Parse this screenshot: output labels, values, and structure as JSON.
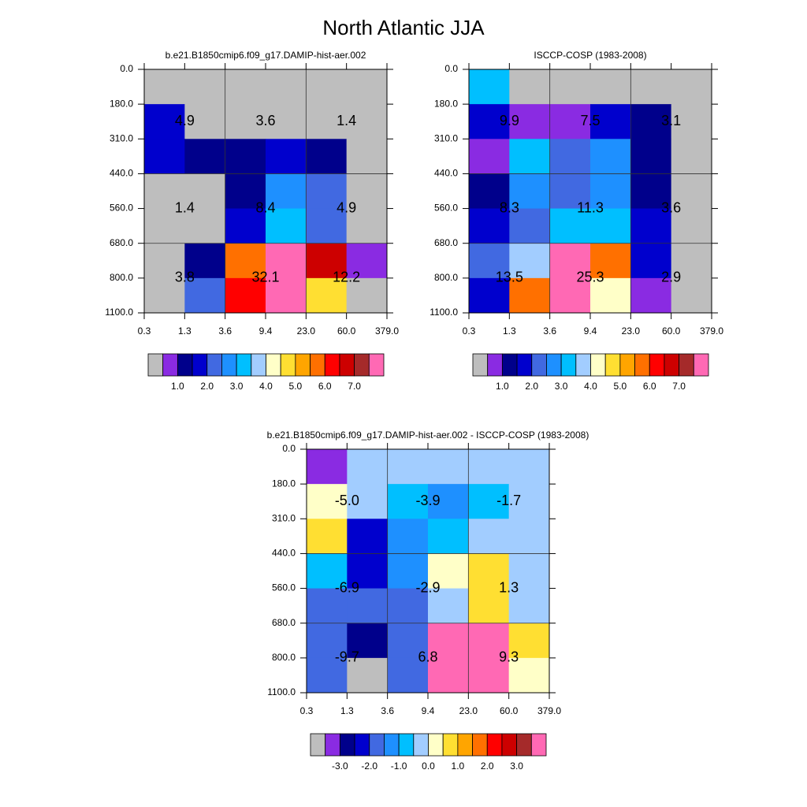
{
  "title": "North Atlantic JJA",
  "chart_data": [
    {
      "type": "heatmap",
      "title": "b.e21.B1850cmip6.f09_g17.DAMIP-hist-aer.002",
      "x_edges": [
        "0.3",
        "1.3",
        "3.6",
        "9.4",
        "23.0",
        "60.0",
        "379.0"
      ],
      "y_edges": [
        "0.0",
        "180.0",
        "310.0",
        "440.0",
        "560.0",
        "680.0",
        "800.0",
        "1100.0"
      ],
      "values": [
        [
          0.25,
          0.25,
          0.25,
          0.25,
          0.25,
          0.25
        ],
        [
          1.75,
          0.25,
          0.25,
          0.25,
          0.25,
          0.25
        ],
        [
          1.75,
          1.25,
          1.25,
          1.75,
          1.25,
          0.25
        ],
        [
          0.25,
          0.25,
          1.25,
          2.75,
          2.25,
          0.25
        ],
        [
          0.25,
          0.25,
          1.75,
          3.25,
          2.25,
          0.25
        ],
        [
          0.25,
          1.25,
          5.75,
          10,
          6.75,
          0.75
        ],
        [
          0.25,
          2.25,
          6.25,
          10,
          4.75,
          0.25
        ]
      ],
      "block_values": [
        4.9,
        3.6,
        1.4,
        1.4,
        8.4,
        4.9,
        3.8,
        32.1,
        12.2
      ],
      "block_value_labels": [
        "4.9",
        "3.6",
        "1.4",
        "1.4",
        "8.4",
        "4.9",
        "3.8",
        "32.1",
        "12.2"
      ],
      "colorbar": {
        "lim": [
          0,
          8
        ],
        "colors": [
          "#bebebe",
          "#8a2be2",
          "#00008b",
          "#0000cd",
          "#4169e1",
          "#1e90ff",
          "#00bfff",
          "#a2cdff",
          "#ffffc8",
          "#ffdf32",
          "#ffa500",
          "#ff7000",
          "#ff0000",
          "#cd0000",
          "#a52a2a",
          "#ff69b4"
        ],
        "ticks": [
          {
            "value": 1,
            "label": "1.0"
          },
          {
            "value": 2,
            "label": "2.0"
          },
          {
            "value": 3,
            "label": "3.0"
          },
          {
            "value": 4,
            "label": "4.0"
          },
          {
            "value": 5,
            "label": "5.0"
          },
          {
            "value": 6,
            "label": "6.0"
          },
          {
            "value": 7,
            "label": "7.0"
          }
        ]
      }
    },
    {
      "type": "heatmap",
      "title": "ISCCP-COSP (1983-2008)",
      "x_edges": [
        "0.3",
        "1.3",
        "3.6",
        "9.4",
        "23.0",
        "60.0",
        "379.0"
      ],
      "y_edges": [
        "0.0",
        "180.0",
        "310.0",
        "440.0",
        "560.0",
        "680.0",
        "800.0",
        "1100.0"
      ],
      "values": [
        [
          3.25,
          0.25,
          0.25,
          0.25,
          0.25,
          0.25
        ],
        [
          1.75,
          0.75,
          0.75,
          1.75,
          1.25,
          0.25
        ],
        [
          0.75,
          3.25,
          2.25,
          2.75,
          1.25,
          0.25
        ],
        [
          1.25,
          2.75,
          2.25,
          2.75,
          1.25,
          0.25
        ],
        [
          1.75,
          2.25,
          3.25,
          3.25,
          1.75,
          0.25
        ],
        [
          2.25,
          3.75,
          7.75,
          5.75,
          1.75,
          0.25
        ],
        [
          1.75,
          5.75,
          7.75,
          4.25,
          0.75,
          0.25
        ]
      ],
      "block_values": [
        9.9,
        7.5,
        3.1,
        8.3,
        11.3,
        3.6,
        13.5,
        25.3,
        2.9
      ],
      "block_value_labels": [
        "9.9",
        "7.5",
        "3.1",
        "8.3",
        "11.3",
        "3.6",
        "13.5",
        "25.3",
        "2.9"
      ],
      "colorbar": {
        "lim": [
          0,
          8
        ],
        "colors": [
          "#bebebe",
          "#8a2be2",
          "#00008b",
          "#0000cd",
          "#4169e1",
          "#1e90ff",
          "#00bfff",
          "#a2cdff",
          "#ffffc8",
          "#ffdf32",
          "#ffa500",
          "#ff7000",
          "#ff0000",
          "#cd0000",
          "#a52a2a",
          "#ff69b4"
        ],
        "ticks": [
          {
            "value": 1,
            "label": "1.0"
          },
          {
            "value": 2,
            "label": "2.0"
          },
          {
            "value": 3,
            "label": "3.0"
          },
          {
            "value": 4,
            "label": "4.0"
          },
          {
            "value": 5,
            "label": "5.0"
          },
          {
            "value": 6,
            "label": "6.0"
          },
          {
            "value": 7,
            "label": "7.0"
          }
        ]
      }
    },
    {
      "type": "heatmap",
      "title": "b.e21.B1850cmip6.f09_g17.DAMIP-hist-aer.002 - ISCCP-COSP (1983-2008)",
      "x_edges": [
        "0.3",
        "1.3",
        "3.6",
        "9.4",
        "23.0",
        "60.0",
        "379.0"
      ],
      "y_edges": [
        "0.0",
        "180.0",
        "310.0",
        "440.0",
        "560.0",
        "680.0",
        "800.0",
        "1100.0"
      ],
      "values": [
        [
          -3.25,
          -0.25,
          -0.25,
          -0.25,
          -0.25,
          -0.25
        ],
        [
          0.25,
          -0.25,
          -0.75,
          -1.25,
          -0.75,
          -0.25
        ],
        [
          0.75,
          -2.25,
          -1.25,
          -0.75,
          -0.25,
          -0.25
        ],
        [
          -0.75,
          -2.25,
          -1.25,
          0.25,
          0.75,
          -0.25
        ],
        [
          -1.75,
          -1.75,
          -1.75,
          -0.25,
          0.75,
          -0.25
        ],
        [
          -1.75,
          -2.75,
          -1.75,
          5.2,
          4.2,
          0.75
        ],
        [
          -1.75,
          -3.75,
          -1.75,
          5.2,
          4.2,
          0.25
        ]
      ],
      "block_values": [
        -5.0,
        -3.9,
        -1.7,
        -6.9,
        -2.9,
        1.3,
        -9.7,
        6.8,
        9.3
      ],
      "block_value_labels": [
        "-5.0",
        "-3.9",
        "-1.7",
        "-6.9",
        "-2.9",
        "1.3",
        "-9.7",
        "6.8",
        "9.3"
      ],
      "colorbar": {
        "lim": [
          -4,
          4
        ],
        "colors": [
          "#bebebe",
          "#8a2be2",
          "#00008b",
          "#0000cd",
          "#4169e1",
          "#1e90ff",
          "#00bfff",
          "#a2cdff",
          "#ffffc8",
          "#ffdf32",
          "#ffa500",
          "#ff7000",
          "#ff0000",
          "#cd0000",
          "#a52a2a",
          "#ff69b4"
        ],
        "ticks": [
          {
            "value": -3,
            "label": "-3.0"
          },
          {
            "value": -2,
            "label": "-2.0"
          },
          {
            "value": -1,
            "label": "-1.0"
          },
          {
            "value": 0,
            "label": "0.0"
          },
          {
            "value": 1,
            "label": "1.0"
          },
          {
            "value": 2,
            "label": "2.0"
          },
          {
            "value": 3,
            "label": "3.0"
          }
        ]
      }
    }
  ]
}
